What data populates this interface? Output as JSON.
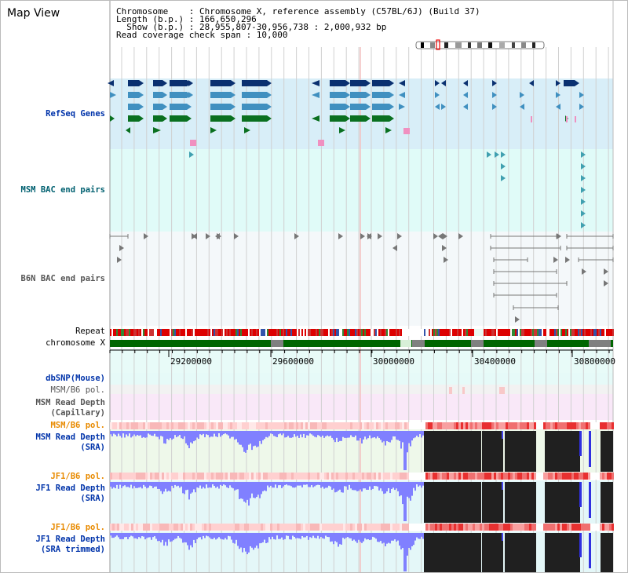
{
  "title": "Map View",
  "info": {
    "line1": "Chromosome    : Chromosome X, reference assembly (C57BL/6J) (Build 37)",
    "line2": "Length (b.p.) : 166,650,296",
    "line3": "  Show (b.p.) : 28,955,807-30,956,738 : 2,000,932 bp",
    "line4": "Read coverage check span : 10,000"
  },
  "tracks": {
    "refseq": "RefSeq Genes",
    "msm_bac": "MSM BAC end pairs",
    "b6n_bac": "B6N BAC end pairs",
    "repeat": "Repeat",
    "chromosome": "chromosome X",
    "dbsnp": "dbSNP(Mouse)",
    "msm_pol1": "MSM/B6 pol.",
    "msm_depth_cap": "MSM Read Depth\n(Capillary)",
    "msm_pol2": "MSM/B6 pol.",
    "msm_depth_sra": "MSM Read Depth\n(SRA)",
    "jf1_pol1": "JF1/B6 pol.",
    "jf1_depth_sra": "JF1 Read Depth\n(SRA)",
    "jf1_pol2": "JF1/B6 pol.",
    "jf1_depth_trim": "JF1 Read Depth\n(SRA trimmed)"
  },
  "axis": {
    "ticks": [
      "29200000",
      "29600000",
      "30000000",
      "30400000",
      "30800000"
    ]
  },
  "colors": {
    "refseq_bg": "#d8eef8",
    "bac_bg": "#e0fbf8",
    "b6n_bg": "#f4f8fa",
    "depth_bar": "#8080ff",
    "pol_pink": "#ffc0c0",
    "no_data": "#202020",
    "chrom_green": "#006600",
    "repeat_red": "#dd0000"
  }
}
